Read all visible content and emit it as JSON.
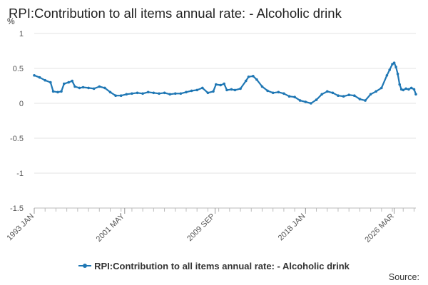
{
  "chart_data": {
    "type": "line",
    "title": "RPI:Contribution to all items annual rate: - Alcoholic drink",
    "ylabel": "%",
    "xlabel": "",
    "ylim": [
      -1.5,
      1
    ],
    "yticks": [
      "1",
      "0.5",
      "0",
      "-0.5",
      "-1",
      "-1.5"
    ],
    "ytick_values": [
      1,
      0.5,
      0,
      -0.5,
      -1,
      -1.5
    ],
    "xticks": [
      "1993 JAN",
      "2001 MAY",
      "2009 SEP",
      "2018 JAN",
      "2026 MAR"
    ],
    "xtick_dates": [
      "1993-01",
      "2001-05",
      "2009-09",
      "2018-01",
      "2026-03"
    ],
    "grid": true,
    "legend_position": "bottom-center",
    "series": [
      {
        "name": "RPI:Contribution to all items annual rate: - Alcoholic drink",
        "color": "#1f77b4",
        "points": [
          [
            "1993-01",
            0.4
          ],
          [
            "1993-07",
            0.37
          ],
          [
            "1994-01",
            0.33
          ],
          [
            "1994-07",
            0.3
          ],
          [
            "1994-10",
            0.17
          ],
          [
            "1995-03",
            0.16
          ],
          [
            "1995-07",
            0.17
          ],
          [
            "1995-10",
            0.28
          ],
          [
            "1996-03",
            0.3
          ],
          [
            "1996-07",
            0.32
          ],
          [
            "1996-10",
            0.24
          ],
          [
            "1997-03",
            0.22
          ],
          [
            "1997-07",
            0.23
          ],
          [
            "1998-01",
            0.22
          ],
          [
            "1998-07",
            0.21
          ],
          [
            "1999-01",
            0.24
          ],
          [
            "1999-07",
            0.22
          ],
          [
            "2000-01",
            0.16
          ],
          [
            "2000-07",
            0.11
          ],
          [
            "2001-01",
            0.11
          ],
          [
            "2001-07",
            0.13
          ],
          [
            "2002-01",
            0.14
          ],
          [
            "2002-07",
            0.15
          ],
          [
            "2003-01",
            0.14
          ],
          [
            "2003-07",
            0.16
          ],
          [
            "2004-01",
            0.15
          ],
          [
            "2004-07",
            0.14
          ],
          [
            "2005-01",
            0.15
          ],
          [
            "2005-07",
            0.13
          ],
          [
            "2006-01",
            0.14
          ],
          [
            "2006-07",
            0.14
          ],
          [
            "2007-01",
            0.16
          ],
          [
            "2007-07",
            0.18
          ],
          [
            "2008-01",
            0.19
          ],
          [
            "2008-07",
            0.22
          ],
          [
            "2009-01",
            0.15
          ],
          [
            "2009-07",
            0.17
          ],
          [
            "2009-10",
            0.27
          ],
          [
            "2010-03",
            0.26
          ],
          [
            "2010-07",
            0.28
          ],
          [
            "2010-10",
            0.19
          ],
          [
            "2011-03",
            0.2
          ],
          [
            "2011-07",
            0.19
          ],
          [
            "2012-01",
            0.21
          ],
          [
            "2012-07",
            0.32
          ],
          [
            "2012-10",
            0.38
          ],
          [
            "2013-03",
            0.39
          ],
          [
            "2013-07",
            0.34
          ],
          [
            "2014-01",
            0.24
          ],
          [
            "2014-07",
            0.18
          ],
          [
            "2015-01",
            0.15
          ],
          [
            "2015-07",
            0.16
          ],
          [
            "2016-01",
            0.14
          ],
          [
            "2016-07",
            0.1
          ],
          [
            "2017-01",
            0.09
          ],
          [
            "2017-07",
            0.04
          ],
          [
            "2018-01",
            0.02
          ],
          [
            "2018-07",
            0.0
          ],
          [
            "2019-01",
            0.05
          ],
          [
            "2019-07",
            0.13
          ],
          [
            "2020-01",
            0.17
          ],
          [
            "2020-07",
            0.15
          ],
          [
            "2021-01",
            0.11
          ],
          [
            "2021-07",
            0.1
          ],
          [
            "2022-01",
            0.12
          ],
          [
            "2022-07",
            0.11
          ],
          [
            "2023-01",
            0.06
          ],
          [
            "2023-07",
            0.04
          ],
          [
            "2024-01",
            0.13
          ],
          [
            "2024-07",
            0.17
          ],
          [
            "2025-01",
            0.22
          ],
          [
            "2025-07",
            0.4
          ],
          [
            "2025-10",
            0.48
          ],
          [
            "2026-01",
            0.56
          ],
          [
            "2026-03",
            0.58
          ],
          [
            "2026-05",
            0.52
          ],
          [
            "2026-07",
            0.42
          ],
          [
            "2026-09",
            0.27
          ],
          [
            "2026-11",
            0.2
          ],
          [
            "2027-01",
            0.19
          ],
          [
            "2027-04",
            0.21
          ],
          [
            "2027-07",
            0.2
          ],
          [
            "2027-10",
            0.22
          ],
          [
            "2028-01",
            0.2
          ],
          [
            "2028-03",
            0.13
          ]
        ]
      }
    ]
  },
  "legend": {
    "label": "RPI:Contribution to all items annual rate: - Alcoholic drink"
  },
  "source": {
    "label": "Source:"
  }
}
